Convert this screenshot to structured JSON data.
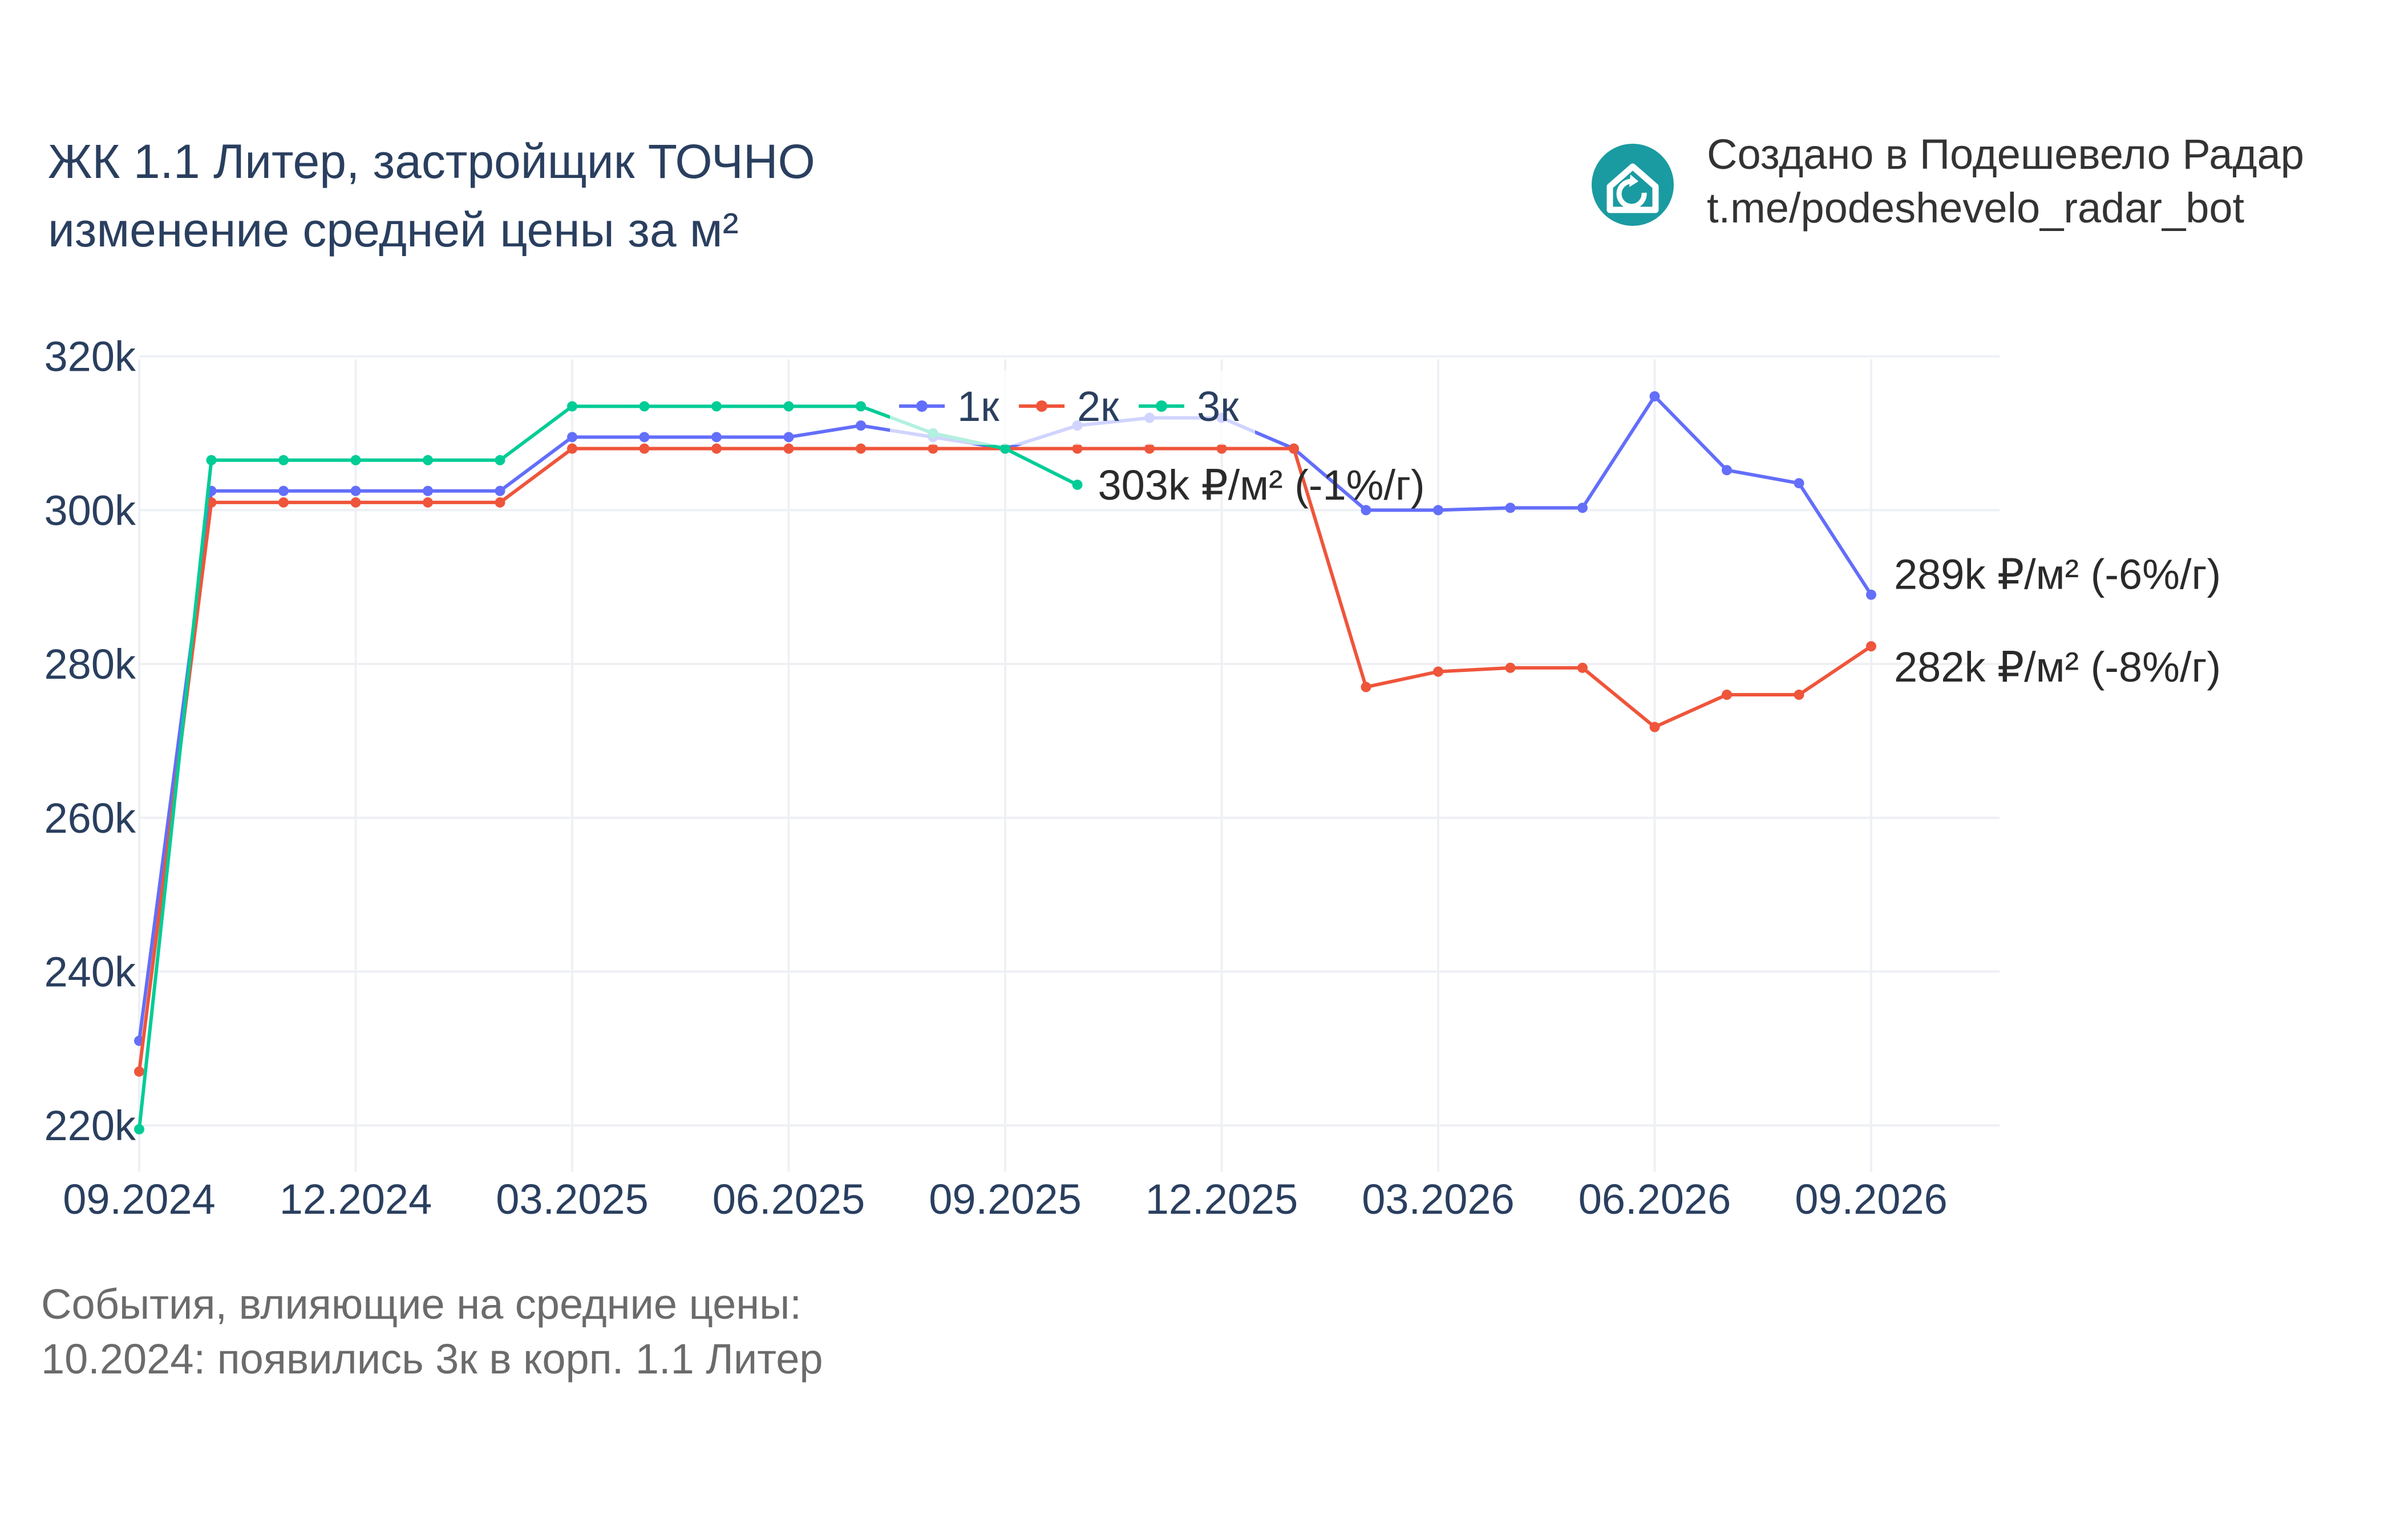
{
  "title": {
    "line1": "ЖК 1.1 Литер, застройщик ТОЧНО",
    "line2": "изменение средней цены за м²"
  },
  "credit": {
    "line1": "Создано в Подешевело Радар",
    "line2": "t.me/podeshevelo_radar_bot",
    "logo_icon": "house-refresh-icon",
    "logo_color": "#1a9ba1"
  },
  "events": {
    "heading": "События, влияющие на средние цены:",
    "items": [
      "10.2024: появились 3к в корп. 1.1 Литер"
    ]
  },
  "chart_data": {
    "type": "line",
    "x": [
      "09.2024",
      "10.2024",
      "11.2024",
      "12.2024",
      "01.2025",
      "02.2025",
      "03.2025",
      "04.2025",
      "05.2025",
      "06.2025",
      "07.2025",
      "08.2025",
      "09.2025",
      "10.2025",
      "11.2025",
      "12.2025",
      "01.2026",
      "02.2026",
      "03.2026",
      "04.2026",
      "05.2026",
      "06.2026",
      "07.2026",
      "08.2026",
      "09.2026"
    ],
    "x_ticks": [
      "09.2024",
      "12.2024",
      "03.2025",
      "06.2025",
      "09.2025",
      "12.2025",
      "03.2026",
      "06.2026",
      "09.2026"
    ],
    "y_ticks": [
      "220k",
      "240k",
      "260k",
      "280k",
      "300k",
      "320k"
    ],
    "y_tick_values": [
      220000,
      240000,
      260000,
      280000,
      300000,
      320000
    ],
    "ylim": [
      214000,
      320500
    ],
    "grid": true,
    "legend_position": "top-center",
    "series": [
      {
        "name": "1к",
        "color": "#636efa",
        "values": [
          231000,
          302500,
          302500,
          302500,
          302500,
          302500,
          309500,
          309500,
          309500,
          309500,
          311000,
          309500,
          308000,
          311000,
          312000,
          312000,
          308000,
          300000,
          300000,
          300300,
          300300,
          314800,
          305200,
          303500,
          289000
        ],
        "end_label": "289k ₽/м² (-6%/г)"
      },
      {
        "name": "2к",
        "color": "#ef553b",
        "values": [
          227000,
          301000,
          301000,
          301000,
          301000,
          301000,
          308000,
          308000,
          308000,
          308000,
          308000,
          308000,
          308000,
          308000,
          308000,
          308000,
          308000,
          277000,
          279000,
          279500,
          279500,
          271800,
          276000,
          276000,
          282300
        ],
        "end_label": "282k ₽/м² (-8%/г)"
      },
      {
        "name": "3к",
        "color": "#00cc96",
        "values": [
          219500,
          306500,
          306500,
          306500,
          306500,
          306500,
          313500,
          313500,
          313500,
          313500,
          313500,
          310000,
          308000,
          303300,
          null,
          null,
          null,
          null,
          null,
          null,
          null,
          null,
          null,
          null,
          null
        ],
        "end_label": "303k ₽/м² (-1%/г)"
      }
    ]
  }
}
